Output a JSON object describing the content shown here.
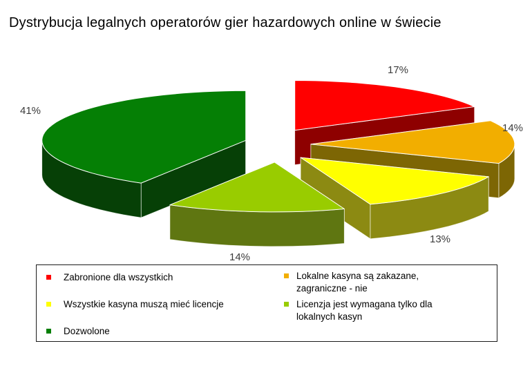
{
  "chart_data": {
    "type": "pie",
    "style": "3d-exploded",
    "title": "Dystrybucja legalnych operatorów gier hazardowych online w świecie",
    "legend_position": "bottom",
    "slices": [
      {
        "label": "Zabronione dla wszystkich",
        "value": 17,
        "pct_label": "17%",
        "color": "#FF0000",
        "side_color": "#8E0000"
      },
      {
        "label": "Lokalne kasyna są zakazane, zagraniczne - nie",
        "value": 14,
        "pct_label": "14%",
        "color": "#F2AE00",
        "side_color": "#7D6604"
      },
      {
        "label": "Wszystkie kasyna muszą mieć licencje",
        "value": 13,
        "pct_label": "13%",
        "color": "#FFFF00",
        "side_color": "#8C8A12"
      },
      {
        "label": "Licenzja jest wymagana tylko dla lokalnych kasyn",
        "value": 14,
        "pct_label": "14%",
        "color": "#99CC00",
        "side_color": "#5F7611"
      },
      {
        "label": "Dozwolone",
        "value": 41,
        "pct_label": "41%",
        "color": "#057F05",
        "side_color": "#064006"
      }
    ]
  }
}
